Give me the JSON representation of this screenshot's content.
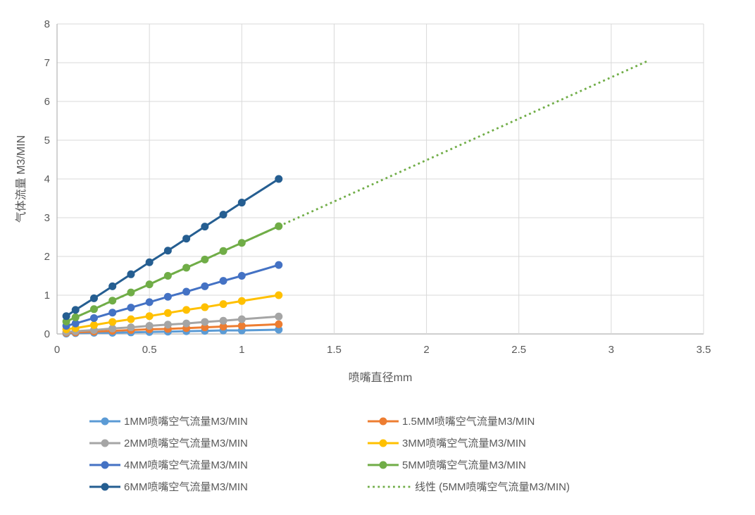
{
  "chart_data": {
    "type": "line",
    "xlabel": "喷嘴直径mm",
    "ylabel": "气体流量 M3/MIN",
    "xlim": [
      0,
      3.5
    ],
    "ylim": [
      0,
      8
    ],
    "x_tick_values": [
      0,
      0.5,
      1,
      1.5,
      2,
      2.5,
      3,
      3.5
    ],
    "x_tick_labels": [
      "0",
      "0.5",
      "1",
      "1.5",
      "2",
      "2.5",
      "3",
      "3.5"
    ],
    "y_tick_values": [
      0,
      1,
      2,
      3,
      4,
      5,
      6,
      7,
      8
    ],
    "grid": true,
    "legend_position": "bottom",
    "x": [
      0.05,
      0.1,
      0.2,
      0.3,
      0.4,
      0.5,
      0.6,
      0.7,
      0.8,
      0.9,
      1.0,
      1.2
    ],
    "series": [
      {
        "name": "1MM喷嘴空气流量M3/MIN",
        "color": "#5B9BD5",
        "values": [
          0.01,
          0.02,
          0.03,
          0.03,
          0.04,
          0.05,
          0.06,
          0.07,
          0.08,
          0.09,
          0.09,
          0.11
        ]
      },
      {
        "name": "1.5MM喷嘴空气流量M3/MIN",
        "color": "#ED7D31",
        "values": [
          0.03,
          0.04,
          0.06,
          0.08,
          0.1,
          0.12,
          0.13,
          0.15,
          0.17,
          0.19,
          0.21,
          0.25
        ]
      },
      {
        "name": "2MM喷嘴空气流量M3/MIN",
        "color": "#A5A5A5",
        "values": [
          0.05,
          0.07,
          0.1,
          0.14,
          0.17,
          0.21,
          0.24,
          0.27,
          0.31,
          0.34,
          0.38,
          0.45
        ]
      },
      {
        "name": "3MM喷嘴空气流量M3/MIN",
        "color": "#FFC000",
        "values": [
          0.12,
          0.15,
          0.23,
          0.31,
          0.38,
          0.46,
          0.54,
          0.62,
          0.69,
          0.77,
          0.85,
          1.0
        ]
      },
      {
        "name": "4MM喷嘴空气流量M3/MIN",
        "color": "#4472C4",
        "values": [
          0.21,
          0.27,
          0.41,
          0.55,
          0.68,
          0.82,
          0.96,
          1.09,
          1.23,
          1.37,
          1.5,
          1.78
        ]
      },
      {
        "name": "5MM喷嘴空气流量M3/MIN",
        "color": "#70AD47",
        "values": [
          0.32,
          0.43,
          0.64,
          0.86,
          1.07,
          1.28,
          1.5,
          1.71,
          1.92,
          2.14,
          2.35,
          2.78
        ]
      },
      {
        "name": "6MM喷嘴空气流量M3/MIN",
        "color": "#255E91",
        "values": [
          0.46,
          0.62,
          0.92,
          1.23,
          1.54,
          1.85,
          2.15,
          2.46,
          2.77,
          3.08,
          3.39,
          4.0
        ]
      }
    ],
    "trendline": {
      "name": "线性 (5MM喷嘴空气流量M3/MIN)",
      "of_series": "5MM喷嘴空气流量M3/MIN",
      "color": "#70AD47",
      "style": "dotted",
      "points": [
        [
          0.05,
          0.32
        ],
        [
          3.2,
          7.05
        ]
      ]
    }
  },
  "legend": {
    "items": [
      {
        "label": "1MM喷嘴空气流量M3/MIN",
        "color": "#5B9BD5",
        "marker": "line-dot"
      },
      {
        "label": "1.5MM喷嘴空气流量M3/MIN",
        "color": "#ED7D31",
        "marker": "line-dot"
      },
      {
        "label": "2MM喷嘴空气流量M3/MIN",
        "color": "#A5A5A5",
        "marker": "line-dot"
      },
      {
        "label": "3MM喷嘴空气流量M3/MIN",
        "color": "#FFC000",
        "marker": "line-dot"
      },
      {
        "label": "4MM喷嘴空气流量M3/MIN",
        "color": "#4472C4",
        "marker": "line-dot"
      },
      {
        "label": "5MM喷嘴空气流量M3/MIN",
        "color": "#70AD47",
        "marker": "line-dot"
      },
      {
        "label": "6MM喷嘴空气流量M3/MIN",
        "color": "#255E91",
        "marker": "line-dot"
      },
      {
        "label": "线性 (5MM喷嘴空气流量M3/MIN)",
        "color": "#70AD47",
        "marker": "dotted-line"
      }
    ]
  },
  "style": {
    "text_color": "#595959",
    "grid_color": "#D9D9D9",
    "axis_color": "#BFBFBF",
    "background": "#FFFFFF"
  }
}
